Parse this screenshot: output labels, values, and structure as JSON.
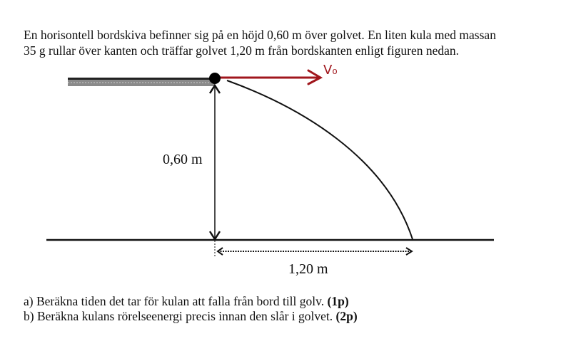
{
  "problem": {
    "intro_line1": "En horisontell bordskiva befinner sig på en höjd 0,60 m över golvet. En liten kula med massan",
    "intro_line2": "35 g rullar över kanten och träffar golvet 1,20 m från bordskanten enligt figuren nedan."
  },
  "figure": {
    "velocity_label": "V₀",
    "height_label": "0,60 m",
    "distance_label": "1,20 m",
    "colors": {
      "velocity_arrow": "#a0161c",
      "lines": "#111111",
      "table": "#8a8a8a"
    }
  },
  "questions": [
    {
      "text": "a) Beräkna tiden det tar för kulan att falla från bord till golv.",
      "points": "(1p)"
    },
    {
      "text": "b) Beräkna kulans rörelseenergi precis innan den slår i golvet.",
      "points": "(2p)"
    }
  ]
}
